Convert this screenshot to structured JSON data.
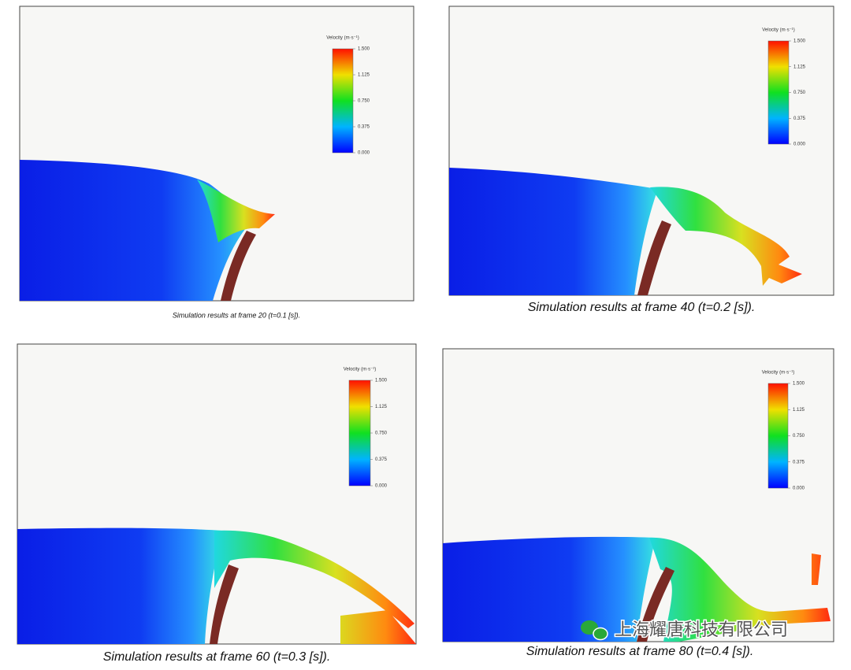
{
  "panels": [
    {
      "caption": "Simulation results at frame 20 (t=0.1 [s]).",
      "legend_title": "Velocity (m·s⁻¹)",
      "legend_ticks": [
        "1.500",
        "1.125",
        "0.750",
        "0.375",
        "0.000"
      ]
    },
    {
      "caption": "Simulation results at frame 40 (t=0.2 [s]).",
      "legend_title": "Velocity (m·s⁻¹)",
      "legend_ticks": [
        "1.500",
        "1.125",
        "0.750",
        "0.375",
        "0.000"
      ]
    },
    {
      "caption": "Simulation results at frame 60 (t=0.3 [s]).",
      "legend_title": "Velocity (m·s⁻¹)",
      "legend_ticks": [
        "1.500",
        "1.125",
        "0.750",
        "0.375",
        "0.000"
      ]
    },
    {
      "caption": "Simulation results at frame 80 (t=0.4 [s]).",
      "legend_title": "Velocity (m·s⁻¹)",
      "legend_ticks": [
        "1.500",
        "1.125",
        "0.750",
        "0.375",
        "0.000"
      ]
    }
  ],
  "watermark": "上海耀唐科技有限公司"
}
